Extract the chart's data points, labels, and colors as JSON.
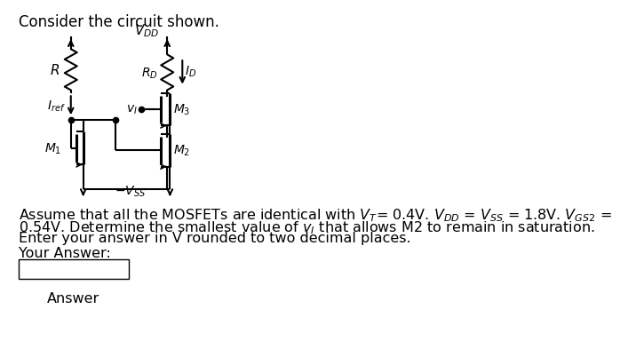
{
  "title": "Consider the circuit shown.",
  "background_color": "#ffffff",
  "text_color": "#000000",
  "body_line1": "Assume that all the MOSFETs are identical with $V_T$= 0.4V. $V_{DD}$ = $V_{SS}$ = 1.8V. $V_{GS2}$ =",
  "body_line2": "0.54V. Determine the smallest value of $v_I$ that allows M2 to remain in saturation.",
  "body_line3": "Enter your answer in V rounded to two decimal places.",
  "your_answer_label": "Your Answer:",
  "answer_label": "Answer"
}
